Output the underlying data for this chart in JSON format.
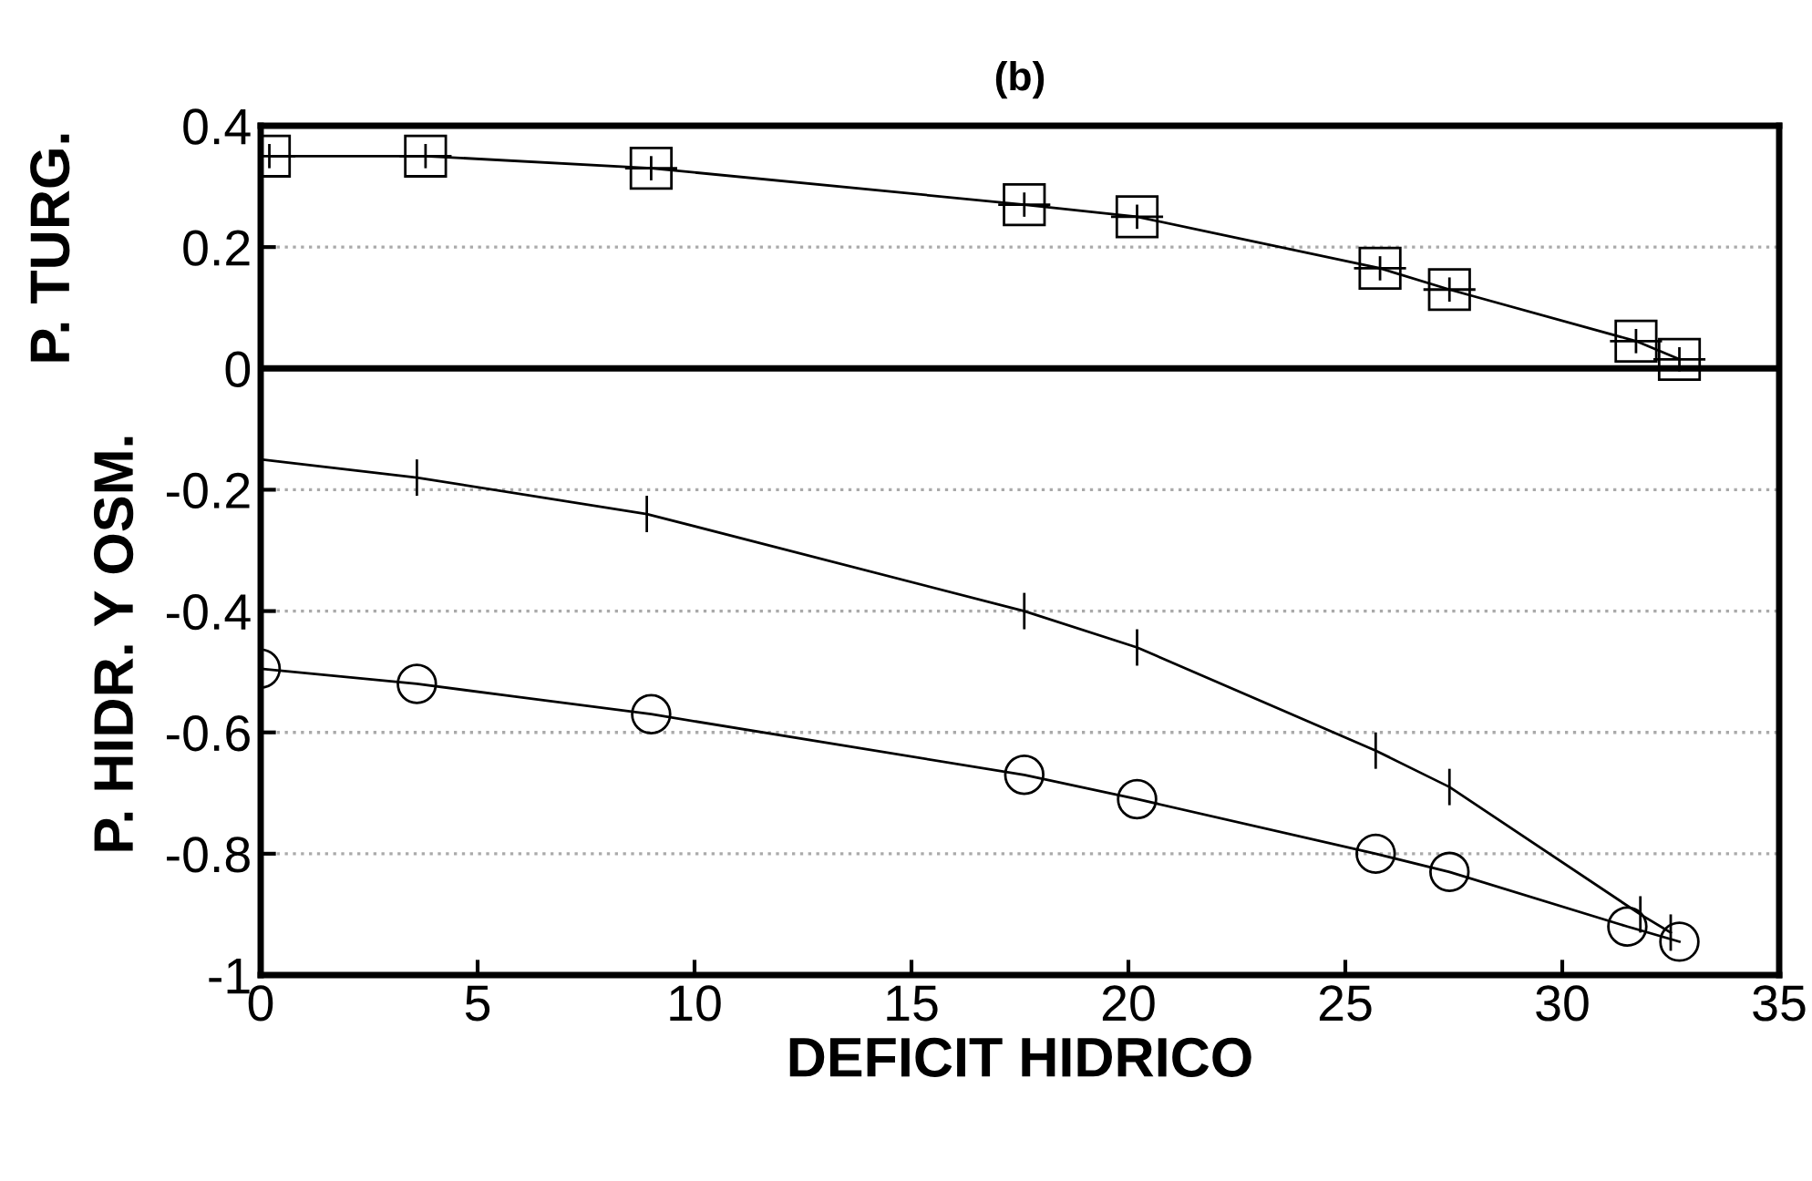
{
  "chart_data": {
    "type": "line",
    "title": "(b)",
    "xlabel": "DEFICIT HIDRICO",
    "ylabel": "P. HIDR. Y OSM.",
    "annotations": [
      "P. TURG."
    ],
    "xlim": [
      0,
      35
    ],
    "xticks": [
      0,
      5,
      10,
      15,
      20,
      25,
      30,
      35
    ],
    "ylim": [
      -1,
      0.4
    ],
    "yticks": [
      0.4,
      0.2,
      0,
      -0.2,
      -0.4,
      -0.6,
      -0.8,
      -1
    ],
    "grid": "y",
    "line_style": "solid",
    "ref_lines": [
      {
        "axis": "y",
        "value": 0,
        "color": "#000000"
      }
    ],
    "series": [
      {
        "color": "#000000",
        "marker": "square",
        "x": [
          0.2,
          3.8,
          9.0,
          17.6,
          20.2,
          25.8,
          27.4,
          31.7,
          32.7
        ],
        "values": [
          0.35,
          0.35,
          0.33,
          0.27,
          0.25,
          0.165,
          0.13,
          0.045,
          0.015
        ],
        "errors": [
          0.02,
          0.02,
          0.02,
          0.02,
          0.02,
          0.02,
          0.02,
          0.02,
          0.02
        ],
        "xerrors": [
          0.6,
          0.6,
          0.6,
          0.6,
          0.6,
          0.6,
          0.6,
          0.6,
          0.6
        ]
      },
      {
        "color": "#000000",
        "marker": "none",
        "x": [
          0,
          3.6,
          8.9,
          17.6,
          20.2,
          25.7,
          27.4,
          31.8,
          32.5
        ],
        "values": [
          -0.15,
          -0.18,
          -0.24,
          -0.4,
          -0.46,
          -0.63,
          -0.69,
          -0.9,
          -0.93
        ],
        "errors": [
          null,
          0.03,
          0.03,
          0.03,
          0.03,
          0.03,
          0.03,
          0.03,
          0.03
        ]
      },
      {
        "color": "#000000",
        "marker": "circle",
        "x": [
          0,
          3.6,
          9.0,
          17.6,
          20.2,
          25.7,
          27.4,
          31.5,
          32.7
        ],
        "values": [
          -0.495,
          -0.52,
          -0.57,
          -0.67,
          -0.71,
          -0.8,
          -0.83,
          -0.92,
          -0.945
        ]
      }
    ]
  }
}
